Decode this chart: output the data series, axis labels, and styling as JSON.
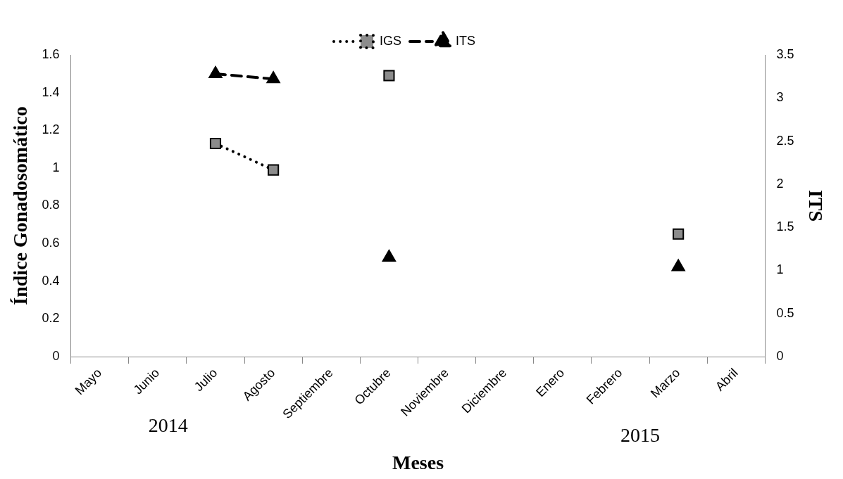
{
  "chart_data": {
    "type": "line",
    "xlabel": "Meses",
    "ylabel": "Índice Gonadosomático",
    "y2label": "ITS",
    "categories": [
      "Mayo",
      "Junio",
      "Julio",
      "Agosto",
      "Septiembre",
      "Octubre",
      "Noviembre",
      "Diciembre",
      "Enero",
      "Febrero",
      "Marzo",
      "Abril"
    ],
    "series": [
      {
        "name": "IGS",
        "color": "#000000",
        "marker": "square",
        "line_style": "dotted",
        "values": [
          null,
          null,
          1.13,
          0.99,
          null,
          1.49,
          null,
          null,
          null,
          null,
          0.65,
          null
        ]
      },
      {
        "name": "ITS",
        "color": "#000000",
        "marker": "triangle",
        "line_style": "dashed",
        "axis": "y2",
        "values": [
          null,
          null,
          3.28,
          3.22,
          null,
          1.15,
          null,
          null,
          null,
          null,
          1.04,
          null
        ]
      }
    ],
    "ylim": [
      0,
      1.6
    ],
    "yticks": [
      0,
      0.2,
      0.4,
      0.6,
      0.8,
      1,
      1.2,
      1.4,
      1.6
    ],
    "y2lim": [
      0,
      3.5
    ],
    "y2ticks": [
      0,
      0.5,
      1,
      1.5,
      2,
      2.5,
      3,
      3.5
    ],
    "grid": false,
    "legend": "top",
    "annotations": [
      "2014",
      "2015"
    ]
  }
}
